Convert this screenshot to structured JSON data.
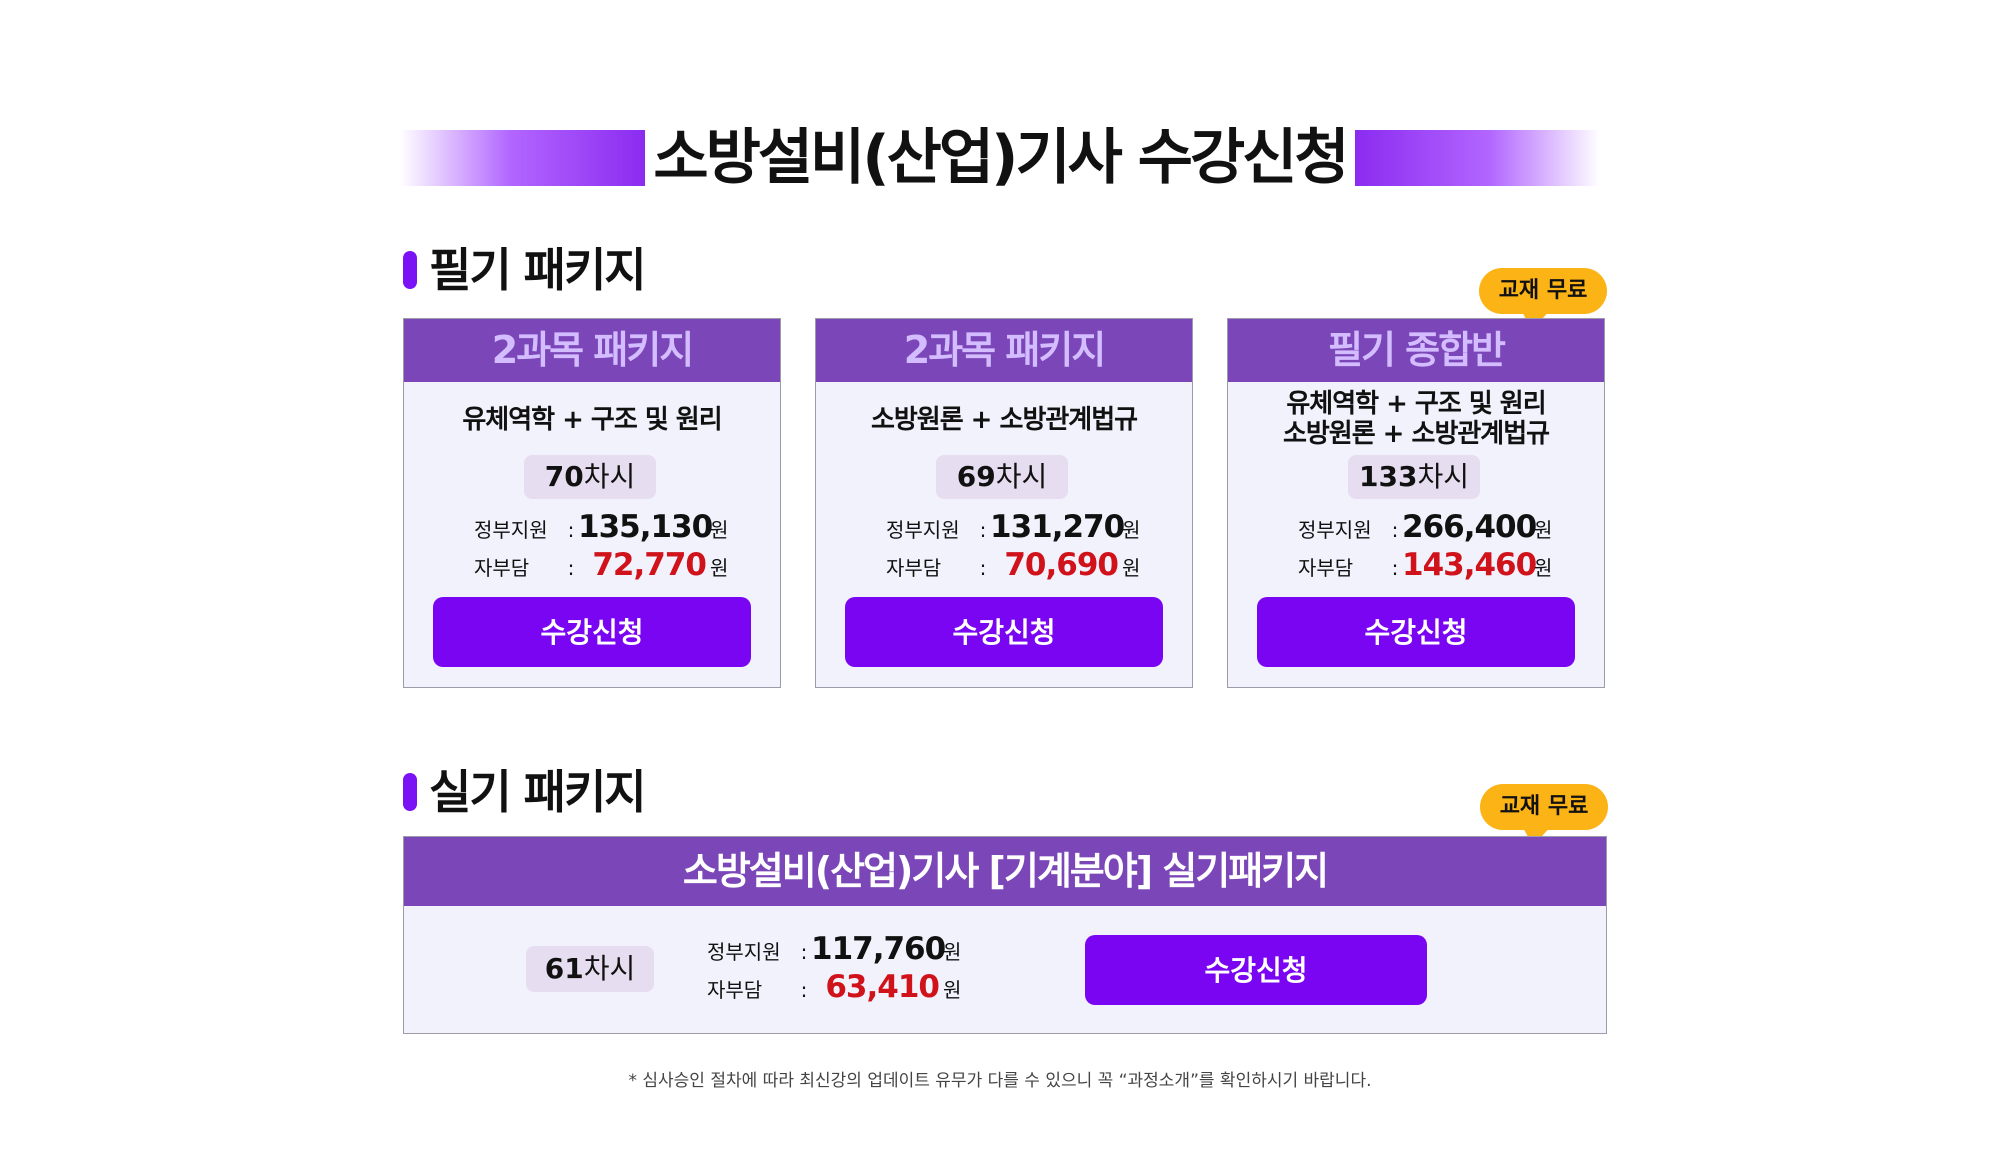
{
  "title": "소방설비(산업)기사 수강신청",
  "written_section": {
    "heading": "필기 패키지",
    "badge": "교재 무료",
    "cards": [
      {
        "name": "2과목 패키지",
        "subjects": [
          "유체역학 + 구조 및 원리"
        ],
        "sessions_number": "70",
        "sessions_unit": "차시",
        "gov_label": "정부지원",
        "gov_value": "135,130",
        "self_label": "자부담",
        "self_value": "72,770",
        "currency": "원",
        "button": "수강신청"
      },
      {
        "name": "2과목 패키지",
        "subjects": [
          "소방원론 + 소방관계법규"
        ],
        "sessions_number": "69",
        "sessions_unit": "차시",
        "gov_label": "정부지원",
        "gov_value": "131,270",
        "self_label": "자부담",
        "self_value": "70,690",
        "currency": "원",
        "button": "수강신청"
      },
      {
        "name": "필기 종합반",
        "subjects": [
          "유체역학 + 구조 및 원리",
          "소방원론 + 소방관계법규"
        ],
        "sessions_number": "133",
        "sessions_unit": "차시",
        "gov_label": "정부지원",
        "gov_value": "266,400",
        "self_label": "자부담",
        "self_value": "143,460",
        "currency": "원",
        "button": "수강신청"
      }
    ]
  },
  "practical_section": {
    "heading": "실기 패키지",
    "badge": "교재 무료",
    "card": {
      "name": "소방설비(산업)기사 [기계분야] 실기패키지",
      "sessions_number": "61",
      "sessions_unit": "차시",
      "gov_label": "정부지원",
      "gov_value": "117,760",
      "self_label": "자부담",
      "self_value": "63,410",
      "currency": "원",
      "button": "수강신청"
    }
  },
  "colon": ":",
  "footnote": "* 심사승인 절차에 따라 최신강의 업데이트 유무가 다를 수 있으니 꼭 “과정소개”를 확인하시기 바랍니다.",
  "colors": {
    "accent_purple": "#7a05f2",
    "card_header": "#7b46b8",
    "badge_yellow": "#fbb315",
    "price_red": "#d0121b"
  }
}
